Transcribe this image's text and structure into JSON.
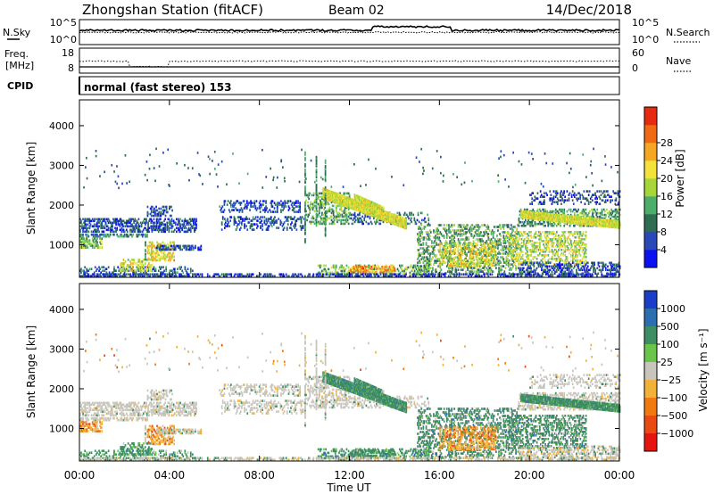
{
  "header": {
    "title": "Zhongshan Station (fitACF)",
    "beam": "Beam 02",
    "date": "14/Dec/2018"
  },
  "status_panels": {
    "nsky_label": "N.Sky",
    "nsky_ticks": [
      "10^5",
      "10^0"
    ],
    "nsearch_label": "N.Search",
    "nsearch_ticks": [
      "10^5",
      "10^0"
    ],
    "freq_label_1": "Freq.",
    "freq_label_2": "[MHz]",
    "freq_ticks": [
      "18",
      "8"
    ],
    "nave_label": "Nave",
    "nave_ticks": [
      "60",
      "0"
    ],
    "cpid_label": "CPID",
    "cpid_text": "normal (fast stereo) 153"
  },
  "chart_data": [
    {
      "type": "heatmap",
      "name": "power",
      "xlabel": "Time UT",
      "ylabel": "Slant Range [km]",
      "yticks": [
        1000,
        2000,
        3000,
        4000
      ],
      "xticks": [
        "00:00",
        "04:00",
        "08:00",
        "12:00",
        "16:00",
        "20:00",
        "00:00"
      ],
      "ylim": [
        180,
        4650
      ],
      "colorbar": {
        "label": "Power [dB]",
        "ticks": [
          4,
          8,
          12,
          16,
          20,
          24,
          28
        ],
        "range": [
          0,
          32
        ],
        "colors": [
          "#0b10f0",
          "#2a48b8",
          "#2e6d52",
          "#4cae6a",
          "#a7d63b",
          "#f2e23a",
          "#f5a623",
          "#f06a13",
          "#e62a10"
        ]
      }
    },
    {
      "type": "heatmap",
      "name": "velocity",
      "xlabel": "Time UT",
      "ylabel": "Slant Range [km]",
      "yticks": [
        1000,
        2000,
        3000,
        4000
      ],
      "xticks": [
        "00:00",
        "04:00",
        "08:00",
        "12:00",
        "16:00",
        "20:00",
        "00:00"
      ],
      "ylim": [
        180,
        4650
      ],
      "colorbar": {
        "label": "Velocity [m s⁻¹]",
        "ticks": [
          "1000",
          "500",
          "100",
          "25",
          "−25",
          "−100",
          "−500",
          "−1000"
        ],
        "colors": [
          "#1a3ec8",
          "#2b6fb0",
          "#3e8e63",
          "#6ac54a",
          "#c8c5bd",
          "#f2b23a",
          "#f07a10",
          "#e84a12",
          "#e6140f"
        ]
      }
    }
  ]
}
